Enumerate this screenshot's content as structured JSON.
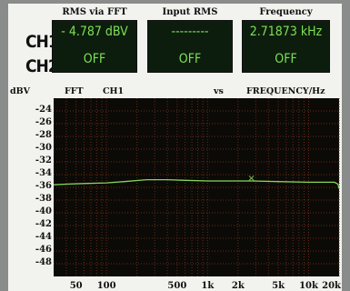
{
  "display": {
    "channels": [
      "CH1",
      "CH2"
    ],
    "panels": [
      {
        "title": "RMS via FFT",
        "ch1": "- 4.787 dBV",
        "ch2": "OFF"
      },
      {
        "title": "Input RMS",
        "ch1": "---------",
        "ch2": "OFF"
      },
      {
        "title": "Frequency",
        "ch1": "2.71873 kHz",
        "ch2": "OFF"
      }
    ],
    "graph_header": {
      "unit": "dBV",
      "mode": "FFT",
      "channel": "CH1",
      "vs": "vs",
      "xaxis": "FREQUENCY/Hz"
    },
    "colors": {
      "panel_bg": "#0c1d0d",
      "panel_text": "#7ee055",
      "grid": "#6a2a16",
      "trace": "#86d659"
    }
  },
  "chart_data": {
    "type": "line",
    "scale_x": "log",
    "xlim": [
      30,
      20000
    ],
    "ylim": [
      -50,
      -22
    ],
    "yticks": [
      -24,
      -26,
      -28,
      -30,
      -32,
      -34,
      -36,
      -38,
      -40,
      -42,
      -44,
      -46,
      -48
    ],
    "ytick_labels": [
      "-24",
      "-26",
      "-28",
      "-30",
      "-32",
      "-34",
      "-36",
      "-38",
      "-40",
      "-42",
      "-44",
      "-46",
      "-48"
    ],
    "xticks": [
      50,
      100,
      500,
      1000,
      2000,
      5000,
      10000,
      20000
    ],
    "xtick_labels": [
      "50",
      "100",
      "500",
      "1k",
      "2k",
      "5k",
      "10k",
      "20k"
    ],
    "grid": true,
    "series": [
      {
        "x": [
          30,
          40,
          60,
          100,
          150,
          250,
          400,
          600,
          1000,
          2000,
          2718,
          5000,
          10000,
          15000,
          18000,
          19500,
          20000
        ],
        "values": [
          -35.6,
          -35.5,
          -35.4,
          -35.3,
          -35.1,
          -34.8,
          -34.8,
          -34.9,
          -35.0,
          -35.0,
          -35.0,
          -35.1,
          -35.2,
          -35.2,
          -35.2,
          -35.5,
          -36.2
        ]
      }
    ],
    "marker": {
      "x": 2718,
      "y": -34.6,
      "symbol": "×"
    }
  }
}
